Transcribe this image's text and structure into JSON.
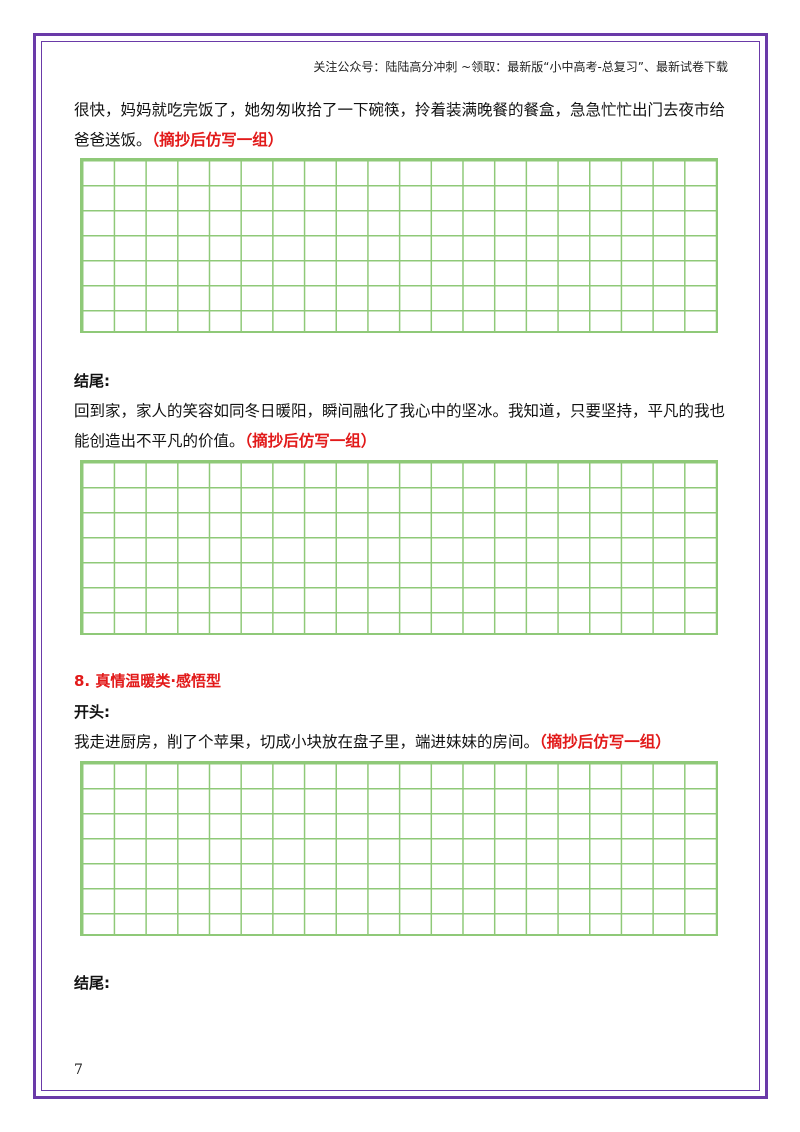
{
  "header": {
    "text": "关注公众号：陆陆高分冲刺 ~领取：最新版“小中高考-总复习”、最新试卷下载"
  },
  "block1": {
    "text": "很快，妈妈就吃完饭了，她匆匆收拾了一下碗筷，拎着装满晚餐的餐盒，急急忙忙出门去夜市给爸爸送饭。",
    "note": "（摘抄后仿写一组）"
  },
  "ending1": {
    "label": "结尾:",
    "text": "回到家，家人的笑容如同冬日暖阳，瞬间融化了我心中的坚冰。我知道，只要坚持，平凡的我也能创造出不平凡的价值。",
    "note": "（摘抄后仿写一组）"
  },
  "section8": {
    "title": "8. 真情温暖类·感悟型",
    "opening_label": "开头:",
    "opening_text": "我走进厨房，削了个苹果，切成小块放在盘子里，端进妹妹的房间。",
    "note": "（摘抄后仿写一组）",
    "ending_label": "结尾:"
  },
  "footer": {
    "page_number": "7"
  },
  "colors": {
    "border": "#6a3aa8",
    "grid": "#8fc978",
    "accent": "#e21a1a"
  }
}
